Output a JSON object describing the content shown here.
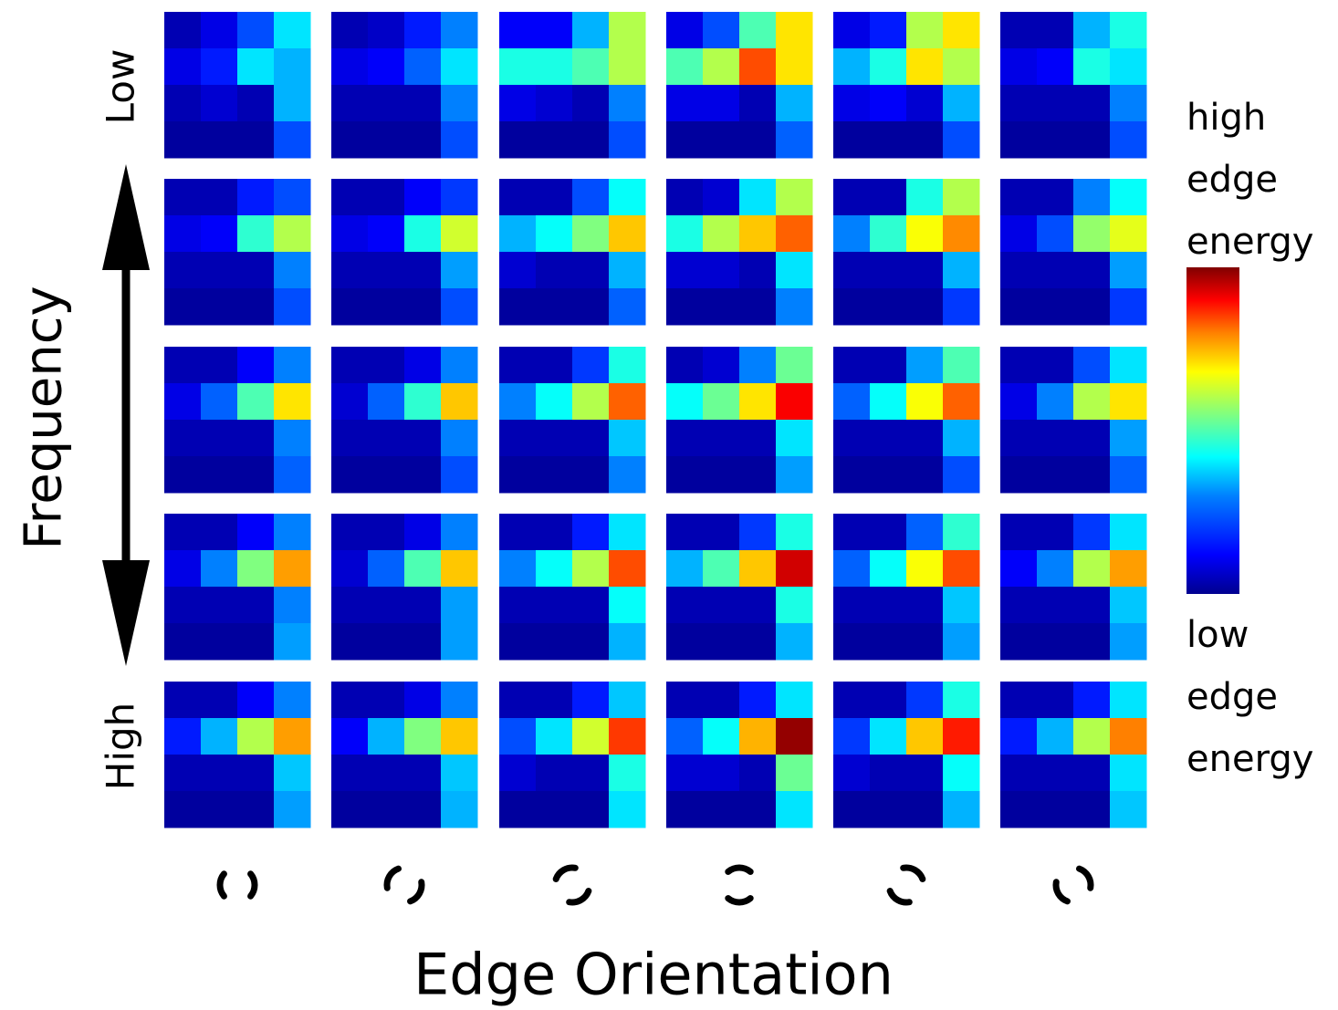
{
  "y_axis": {
    "title": "Frequency",
    "top_label": "Low",
    "bottom_label": "High"
  },
  "x_axis": {
    "title": "Edge Orientation",
    "icons": [
      "edge-orientation-1-icon",
      "edge-orientation-2-icon",
      "edge-orientation-3-icon",
      "edge-orientation-4-icon",
      "edge-orientation-5-icon",
      "edge-orientation-6-icon"
    ]
  },
  "colorbar": {
    "top_label_lines": [
      "high",
      "edge",
      "energy"
    ],
    "bottom_label_lines": [
      "low",
      "edge",
      "energy"
    ],
    "colormap": "jet"
  },
  "chart_data": {
    "type": "heatmap",
    "layout": "5 frequency rows x 6 orientation columns, each a 4x4 cell map",
    "value_scale": "0 (low edge energy) to 1 (high edge energy)",
    "panels": [
      [
        [
          [
            0.05,
            0.1,
            0.2,
            0.35
          ],
          [
            0.1,
            0.15,
            0.35,
            0.3
          ],
          [
            0.05,
            0.08,
            0.05,
            0.3
          ],
          [
            0.03,
            0.03,
            0.03,
            0.2
          ]
        ],
        [
          [
            0.05,
            0.07,
            0.15,
            0.25
          ],
          [
            0.1,
            0.12,
            0.22,
            0.35
          ],
          [
            0.05,
            0.05,
            0.05,
            0.25
          ],
          [
            0.03,
            0.03,
            0.03,
            0.2
          ]
        ],
        [
          [
            0.12,
            0.12,
            0.3,
            0.55
          ],
          [
            0.4,
            0.4,
            0.45,
            0.55
          ],
          [
            0.1,
            0.08,
            0.05,
            0.25
          ],
          [
            0.03,
            0.03,
            0.03,
            0.2
          ]
        ],
        [
          [
            0.1,
            0.2,
            0.45,
            0.65
          ],
          [
            0.45,
            0.55,
            0.8,
            0.65
          ],
          [
            0.1,
            0.1,
            0.05,
            0.3
          ],
          [
            0.03,
            0.03,
            0.03,
            0.22
          ]
        ],
        [
          [
            0.1,
            0.15,
            0.55,
            0.65
          ],
          [
            0.3,
            0.4,
            0.65,
            0.55
          ],
          [
            0.1,
            0.12,
            0.08,
            0.3
          ],
          [
            0.03,
            0.03,
            0.03,
            0.2
          ]
        ],
        [
          [
            0.05,
            0.05,
            0.3,
            0.4
          ],
          [
            0.1,
            0.12,
            0.4,
            0.35
          ],
          [
            0.05,
            0.05,
            0.05,
            0.25
          ],
          [
            0.03,
            0.03,
            0.03,
            0.2
          ]
        ]
      ],
      [
        [
          [
            0.05,
            0.05,
            0.15,
            0.2
          ],
          [
            0.1,
            0.12,
            0.42,
            0.55
          ],
          [
            0.05,
            0.05,
            0.05,
            0.25
          ],
          [
            0.03,
            0.03,
            0.03,
            0.2
          ]
        ],
        [
          [
            0.05,
            0.05,
            0.12,
            0.18
          ],
          [
            0.1,
            0.12,
            0.4,
            0.58
          ],
          [
            0.05,
            0.05,
            0.05,
            0.28
          ],
          [
            0.03,
            0.03,
            0.03,
            0.2
          ]
        ],
        [
          [
            0.05,
            0.05,
            0.2,
            0.38
          ],
          [
            0.3,
            0.38,
            0.5,
            0.68
          ],
          [
            0.08,
            0.05,
            0.05,
            0.3
          ],
          [
            0.03,
            0.03,
            0.03,
            0.22
          ]
        ],
        [
          [
            0.05,
            0.08,
            0.35,
            0.55
          ],
          [
            0.4,
            0.55,
            0.68,
            0.78
          ],
          [
            0.08,
            0.08,
            0.05,
            0.35
          ],
          [
            0.03,
            0.03,
            0.03,
            0.25
          ]
        ],
        [
          [
            0.05,
            0.05,
            0.4,
            0.55
          ],
          [
            0.25,
            0.42,
            0.62,
            0.74
          ],
          [
            0.05,
            0.05,
            0.05,
            0.3
          ],
          [
            0.03,
            0.03,
            0.03,
            0.18
          ]
        ],
        [
          [
            0.05,
            0.05,
            0.25,
            0.38
          ],
          [
            0.1,
            0.2,
            0.52,
            0.6
          ],
          [
            0.05,
            0.05,
            0.05,
            0.28
          ],
          [
            0.03,
            0.03,
            0.03,
            0.18
          ]
        ]
      ],
      [
        [
          [
            0.05,
            0.05,
            0.12,
            0.25
          ],
          [
            0.1,
            0.22,
            0.45,
            0.65
          ],
          [
            0.05,
            0.05,
            0.05,
            0.25
          ],
          [
            0.03,
            0.03,
            0.03,
            0.22
          ]
        ],
        [
          [
            0.05,
            0.05,
            0.1,
            0.25
          ],
          [
            0.08,
            0.22,
            0.42,
            0.68
          ],
          [
            0.05,
            0.05,
            0.05,
            0.25
          ],
          [
            0.03,
            0.03,
            0.03,
            0.2
          ]
        ],
        [
          [
            0.05,
            0.05,
            0.18,
            0.4
          ],
          [
            0.25,
            0.38,
            0.55,
            0.78
          ],
          [
            0.05,
            0.05,
            0.05,
            0.32
          ],
          [
            0.03,
            0.03,
            0.03,
            0.25
          ]
        ],
        [
          [
            0.05,
            0.08,
            0.25,
            0.48
          ],
          [
            0.38,
            0.48,
            0.65,
            0.88
          ],
          [
            0.05,
            0.05,
            0.05,
            0.35
          ],
          [
            0.03,
            0.03,
            0.03,
            0.28
          ]
        ],
        [
          [
            0.05,
            0.05,
            0.28,
            0.45
          ],
          [
            0.22,
            0.38,
            0.62,
            0.78
          ],
          [
            0.05,
            0.05,
            0.05,
            0.3
          ],
          [
            0.03,
            0.03,
            0.03,
            0.2
          ]
        ],
        [
          [
            0.05,
            0.05,
            0.2,
            0.35
          ],
          [
            0.1,
            0.25,
            0.55,
            0.65
          ],
          [
            0.05,
            0.05,
            0.05,
            0.28
          ],
          [
            0.03,
            0.03,
            0.03,
            0.22
          ]
        ]
      ],
      [
        [
          [
            0.05,
            0.05,
            0.12,
            0.25
          ],
          [
            0.1,
            0.25,
            0.5,
            0.72
          ],
          [
            0.05,
            0.05,
            0.05,
            0.25
          ],
          [
            0.03,
            0.03,
            0.03,
            0.28
          ]
        ],
        [
          [
            0.05,
            0.05,
            0.1,
            0.25
          ],
          [
            0.08,
            0.22,
            0.45,
            0.68
          ],
          [
            0.05,
            0.05,
            0.05,
            0.28
          ],
          [
            0.03,
            0.03,
            0.03,
            0.28
          ]
        ],
        [
          [
            0.05,
            0.05,
            0.15,
            0.35
          ],
          [
            0.25,
            0.38,
            0.55,
            0.8
          ],
          [
            0.05,
            0.05,
            0.05,
            0.38
          ],
          [
            0.03,
            0.03,
            0.03,
            0.3
          ]
        ],
        [
          [
            0.05,
            0.05,
            0.18,
            0.4
          ],
          [
            0.3,
            0.45,
            0.68,
            0.92
          ],
          [
            0.05,
            0.05,
            0.05,
            0.4
          ],
          [
            0.03,
            0.03,
            0.03,
            0.3
          ]
        ],
        [
          [
            0.05,
            0.05,
            0.22,
            0.42
          ],
          [
            0.22,
            0.38,
            0.62,
            0.8
          ],
          [
            0.05,
            0.05,
            0.05,
            0.32
          ],
          [
            0.03,
            0.03,
            0.03,
            0.28
          ]
        ],
        [
          [
            0.05,
            0.05,
            0.18,
            0.35
          ],
          [
            0.12,
            0.25,
            0.55,
            0.72
          ],
          [
            0.05,
            0.05,
            0.05,
            0.32
          ],
          [
            0.03,
            0.03,
            0.03,
            0.28
          ]
        ]
      ],
      [
        [
          [
            0.05,
            0.05,
            0.12,
            0.25
          ],
          [
            0.15,
            0.3,
            0.55,
            0.72
          ],
          [
            0.05,
            0.05,
            0.05,
            0.32
          ],
          [
            0.03,
            0.03,
            0.03,
            0.28
          ]
        ],
        [
          [
            0.05,
            0.05,
            0.1,
            0.25
          ],
          [
            0.12,
            0.3,
            0.5,
            0.68
          ],
          [
            0.05,
            0.05,
            0.05,
            0.32
          ],
          [
            0.03,
            0.03,
            0.03,
            0.3
          ]
        ],
        [
          [
            0.05,
            0.05,
            0.15,
            0.32
          ],
          [
            0.2,
            0.35,
            0.58,
            0.82
          ],
          [
            0.08,
            0.05,
            0.05,
            0.4
          ],
          [
            0.03,
            0.03,
            0.03,
            0.35
          ]
        ],
        [
          [
            0.05,
            0.05,
            0.15,
            0.35
          ],
          [
            0.22,
            0.38,
            0.7,
            0.98
          ],
          [
            0.08,
            0.08,
            0.05,
            0.48
          ],
          [
            0.03,
            0.03,
            0.03,
            0.35
          ]
        ],
        [
          [
            0.05,
            0.05,
            0.18,
            0.4
          ],
          [
            0.18,
            0.35,
            0.68,
            0.85
          ],
          [
            0.08,
            0.05,
            0.05,
            0.38
          ],
          [
            0.03,
            0.03,
            0.03,
            0.3
          ]
        ],
        [
          [
            0.05,
            0.05,
            0.15,
            0.35
          ],
          [
            0.15,
            0.3,
            0.55,
            0.75
          ],
          [
            0.05,
            0.05,
            0.05,
            0.35
          ],
          [
            0.03,
            0.03,
            0.03,
            0.32
          ]
        ]
      ]
    ]
  }
}
